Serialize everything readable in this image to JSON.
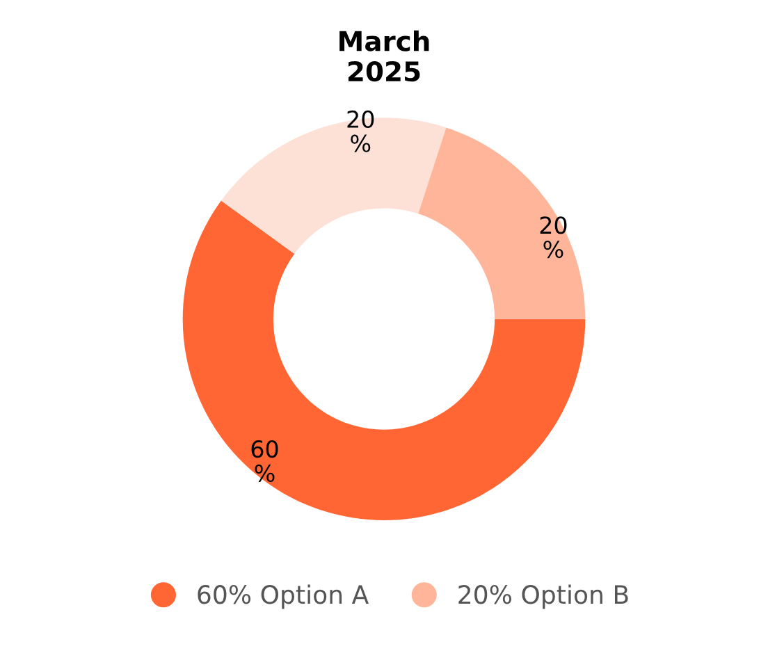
{
  "chart_data": {
    "type": "donut",
    "title": "March\n2025",
    "categories": [
      "60% Option A",
      null,
      "20% Option B"
    ],
    "values": [
      60,
      20,
      20
    ],
    "colors": [
      "#ff6633",
      "#fde0d6",
      "#ffb59a"
    ],
    "value_labels": [
      "60 %",
      "20 %",
      "20 %"
    ],
    "legend": "bottom"
  }
}
